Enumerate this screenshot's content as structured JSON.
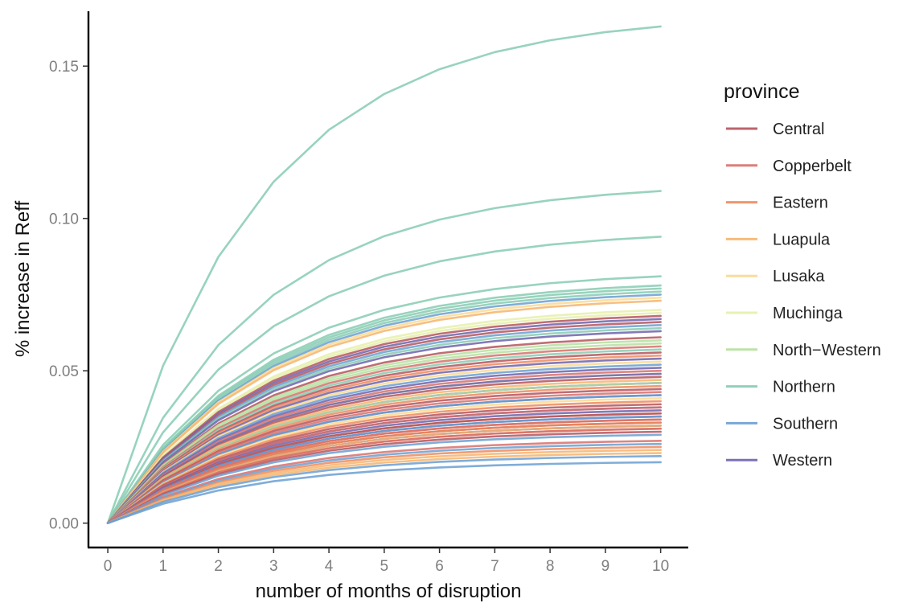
{
  "chart_data": {
    "type": "line",
    "xlabel": "number of months of disruption",
    "ylabel": "% increase in Reff",
    "x": [
      0,
      1,
      2,
      3,
      4,
      5,
      6,
      7,
      8,
      9,
      10
    ],
    "x_ticks": [
      "0",
      "1",
      "2",
      "3",
      "4",
      "5",
      "6",
      "7",
      "8",
      "9",
      "10"
    ],
    "y_ticks": [
      "0.00",
      "0.05",
      "0.10",
      "0.15"
    ],
    "xlim": [
      -0.35,
      10.5
    ],
    "ylim": [
      -0.008,
      0.168
    ],
    "grid": false,
    "legend_title": "province",
    "legend_position": "right",
    "legend": [
      {
        "name": "Central",
        "color": "#b5535c"
      },
      {
        "name": "Copperbelt",
        "color": "#d8706a"
      },
      {
        "name": "Eastern",
        "color": "#ee8a5c"
      },
      {
        "name": "Luapula",
        "color": "#f6b46c"
      },
      {
        "name": "Lusaka",
        "color": "#fbd98f"
      },
      {
        "name": "Muchinga",
        "color": "#e6efaa"
      },
      {
        "name": "North−Western",
        "color": "#b6dfa0"
      },
      {
        "name": "Northern",
        "color": "#86cbb2"
      },
      {
        "name": "Southern",
        "color": "#6a9fd2"
      },
      {
        "name": "Western",
        "color": "#6d63ad"
      }
    ],
    "series": [
      {
        "province": "Northern",
        "plateau": 0.163
      },
      {
        "province": "Northern",
        "plateau": 0.109
      },
      {
        "province": "Northern",
        "plateau": 0.094
      },
      {
        "province": "Northern",
        "plateau": 0.081
      },
      {
        "province": "Northern",
        "plateau": 0.078
      },
      {
        "province": "Northern",
        "plateau": 0.077
      },
      {
        "province": "Northern",
        "plateau": 0.076
      },
      {
        "province": "Southern",
        "plateau": 0.075
      },
      {
        "province": "Lusaka",
        "plateau": 0.074
      },
      {
        "province": "Luapula",
        "plateau": 0.073
      },
      {
        "province": "Muchinga",
        "plateau": 0.07
      },
      {
        "province": "Muchinga",
        "plateau": 0.069
      },
      {
        "province": "Central",
        "plateau": 0.068
      },
      {
        "province": "Western",
        "plateau": 0.067
      },
      {
        "province": "Central",
        "plateau": 0.066
      },
      {
        "province": "Southern",
        "plateau": 0.065
      },
      {
        "province": "Northern",
        "plateau": 0.064
      },
      {
        "province": "Western",
        "plateau": 0.063
      },
      {
        "province": "Central",
        "plateau": 0.061
      },
      {
        "province": "North−Western",
        "plateau": 0.06
      },
      {
        "province": "North−Western",
        "plateau": 0.059
      },
      {
        "province": "Copperbelt",
        "plateau": 0.058
      },
      {
        "province": "Northern",
        "plateau": 0.057
      },
      {
        "province": "Central",
        "plateau": 0.056
      },
      {
        "province": "Eastern",
        "plateau": 0.055
      },
      {
        "province": "Western",
        "plateau": 0.054
      },
      {
        "province": "Lusaka",
        "plateau": 0.053
      },
      {
        "province": "Southern",
        "plateau": 0.052
      },
      {
        "province": "Western",
        "plateau": 0.051
      },
      {
        "province": "Copperbelt",
        "plateau": 0.05
      },
      {
        "province": "Muchinga",
        "plateau": 0.049
      },
      {
        "province": "Western",
        "plateau": 0.049
      },
      {
        "province": "Central",
        "plateau": 0.048
      },
      {
        "province": "Luapula",
        "plateau": 0.047
      },
      {
        "province": "Western",
        "plateau": 0.046
      },
      {
        "province": "North−Western",
        "plateau": 0.046
      },
      {
        "province": "Eastern",
        "plateau": 0.045
      },
      {
        "province": "Central",
        "plateau": 0.044
      },
      {
        "province": "Copperbelt",
        "plateau": 0.043
      },
      {
        "province": "Western",
        "plateau": 0.042
      },
      {
        "province": "Southern",
        "plateau": 0.042
      },
      {
        "province": "Lusaka",
        "plateau": 0.041
      },
      {
        "province": "Eastern",
        "plateau": 0.04
      },
      {
        "province": "Central",
        "plateau": 0.039
      },
      {
        "province": "Western",
        "plateau": 0.038
      },
      {
        "province": "Copperbelt",
        "plateau": 0.038
      },
      {
        "province": "Western",
        "plateau": 0.037
      },
      {
        "province": "Eastern",
        "plateau": 0.036
      },
      {
        "province": "Central",
        "plateau": 0.036
      },
      {
        "province": "Western",
        "plateau": 0.035
      },
      {
        "province": "Southern",
        "plateau": 0.035
      },
      {
        "province": "Eastern",
        "plateau": 0.034
      },
      {
        "province": "Copperbelt",
        "plateau": 0.034
      },
      {
        "province": "Central",
        "plateau": 0.033
      },
      {
        "province": "Eastern",
        "plateau": 0.033
      },
      {
        "province": "Western",
        "plateau": 0.032
      },
      {
        "province": "Luapula",
        "plateau": 0.032
      },
      {
        "province": "Eastern",
        "plateau": 0.031
      },
      {
        "province": "Copperbelt",
        "plateau": 0.031
      },
      {
        "province": "Central",
        "plateau": 0.03
      },
      {
        "province": "Southern",
        "plateau": 0.029
      },
      {
        "province": "Copperbelt",
        "plateau": 0.027
      },
      {
        "province": "Southern",
        "plateau": 0.026
      },
      {
        "province": "Eastern",
        "plateau": 0.025
      },
      {
        "province": "Luapula",
        "plateau": 0.024
      },
      {
        "province": "Luapula",
        "plateau": 0.023
      },
      {
        "province": "Southern",
        "plateau": 0.022
      },
      {
        "province": "Southern",
        "plateau": 0.02
      }
    ]
  }
}
